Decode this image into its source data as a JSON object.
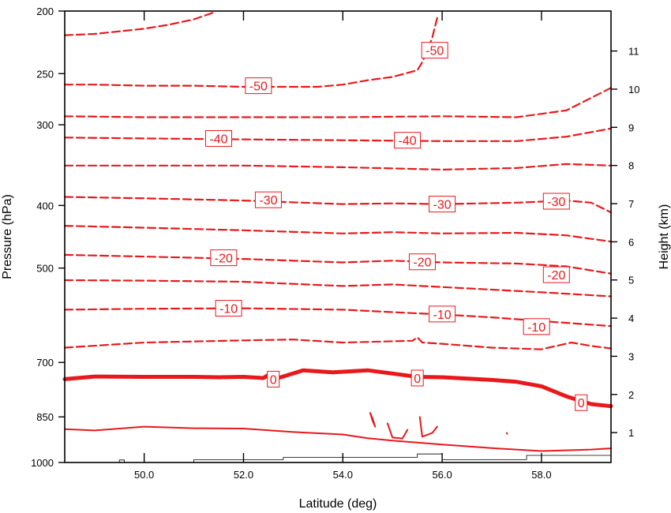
{
  "chart_data": {
    "type": "contour",
    "xlabel": "Latitude (deg)",
    "ylabel": "Pressure (hPa)",
    "y2label": "Height (km)",
    "xlim": [
      48.4,
      59.4
    ],
    "x_ticks": [
      {
        "value": 50,
        "label": "50.0"
      },
      {
        "value": 52,
        "label": "52.0"
      },
      {
        "value": 54,
        "label": "54.0"
      },
      {
        "value": 56,
        "label": "56.0"
      },
      {
        "value": 58,
        "label": "58.0"
      }
    ],
    "y_scale": "log-pressure",
    "ylim": [
      1000,
      200
    ],
    "y_ticks": [
      {
        "value": 1000,
        "label": "1000"
      },
      {
        "value": 850,
        "label": "850"
      },
      {
        "value": 700,
        "label": "700"
      },
      {
        "value": 500,
        "label": "500"
      },
      {
        "value": 400,
        "label": "400"
      },
      {
        "value": 300,
        "label": "300"
      },
      {
        "value": 250,
        "label": "250"
      },
      {
        "value": 200,
        "label": "200"
      }
    ],
    "y2_ticks": [
      {
        "value": 1,
        "label": "1"
      },
      {
        "value": 2,
        "label": "2"
      },
      {
        "value": 3,
        "label": "3"
      },
      {
        "value": 4,
        "label": "4"
      },
      {
        "value": 5,
        "label": "5"
      },
      {
        "value": 6,
        "label": "6"
      },
      {
        "value": 7,
        "label": "7"
      },
      {
        "value": 8,
        "label": "8"
      },
      {
        "value": 9,
        "label": "9"
      },
      {
        "value": 10,
        "label": "10"
      },
      {
        "value": 11,
        "label": "11"
      }
    ],
    "contour_color": "#e8191c",
    "contours": [
      {
        "level": -55,
        "style": "dashed",
        "points": [
          [
            48.4,
            218
          ],
          [
            49,
            217
          ],
          [
            49.5,
            215
          ],
          [
            50,
            213
          ],
          [
            50.5,
            210
          ],
          [
            51,
            206
          ],
          [
            51.4,
            201
          ]
        ]
      },
      {
        "level": -50,
        "style": "dashed",
        "points": [
          [
            48.4,
            260
          ],
          [
            49,
            260
          ],
          [
            50,
            261
          ],
          [
            51,
            261
          ],
          [
            52,
            262
          ],
          [
            53,
            262
          ],
          [
            53.5,
            262
          ],
          [
            54,
            260
          ],
          [
            54.5,
            256
          ],
          [
            55,
            253
          ],
          [
            55.5,
            247
          ],
          [
            55.6,
            240
          ],
          [
            55.7,
            230
          ],
          [
            55.8,
            220
          ],
          [
            55.9,
            205
          ]
        ]
      },
      {
        "level": -45,
        "style": "dashed",
        "points": [
          [
            48.4,
            291
          ],
          [
            50,
            292
          ],
          [
            52,
            292
          ],
          [
            54,
            292
          ],
          [
            56,
            291
          ],
          [
            57.5,
            292
          ],
          [
            58.5,
            285
          ],
          [
            59.4,
            263
          ]
        ]
      },
      {
        "level": -40,
        "style": "dashed",
        "points": [
          [
            48.4,
            314
          ],
          [
            50,
            315
          ],
          [
            52,
            316
          ],
          [
            54,
            317
          ],
          [
            56,
            318
          ],
          [
            57.5,
            318
          ],
          [
            58.5,
            313
          ],
          [
            59.4,
            304
          ]
        ]
      },
      {
        "level": -35,
        "style": "dashed",
        "points": [
          [
            48.4,
            347
          ],
          [
            50,
            347
          ],
          [
            52,
            347
          ],
          [
            54,
            349
          ],
          [
            56,
            352
          ],
          [
            57.5,
            350
          ],
          [
            58.5,
            345
          ],
          [
            59.4,
            347
          ]
        ]
      },
      {
        "level": -30,
        "style": "dashed",
        "points": [
          [
            48.4,
            388
          ],
          [
            50,
            390
          ],
          [
            52,
            393
          ],
          [
            54,
            398
          ],
          [
            55,
            397
          ],
          [
            56,
            398
          ],
          [
            57.5,
            396
          ],
          [
            58.5,
            393
          ],
          [
            59,
            396
          ],
          [
            59.4,
            410
          ]
        ]
      },
      {
        "level": -25,
        "style": "dashed",
        "points": [
          [
            48.4,
            430
          ],
          [
            50,
            433
          ],
          [
            52,
            437
          ],
          [
            54,
            442
          ],
          [
            55,
            440
          ],
          [
            56,
            442
          ],
          [
            57.5,
            441
          ],
          [
            58.5,
            445
          ],
          [
            59.4,
            455
          ]
        ]
      },
      {
        "level": -20,
        "style": "dashed",
        "points": [
          [
            48.4,
            477
          ],
          [
            50,
            480
          ],
          [
            52,
            484
          ],
          [
            54,
            490
          ],
          [
            55,
            487
          ],
          [
            56,
            490
          ],
          [
            57.5,
            492
          ],
          [
            58.5,
            497
          ],
          [
            59.4,
            510
          ]
        ]
      },
      {
        "level": -15,
        "style": "dashed",
        "points": [
          [
            48.4,
            522
          ],
          [
            50,
            523
          ],
          [
            52,
            525
          ],
          [
            54,
            533
          ],
          [
            55,
            530
          ],
          [
            56,
            535
          ],
          [
            57,
            540
          ],
          [
            58,
            545
          ],
          [
            59.4,
            553
          ]
        ]
      },
      {
        "level": -10,
        "style": "dashed",
        "points": [
          [
            48.4,
            580
          ],
          [
            50,
            578
          ],
          [
            52,
            577
          ],
          [
            54,
            580
          ],
          [
            55,
            585
          ],
          [
            56,
            590
          ],
          [
            57,
            596
          ],
          [
            58,
            604
          ],
          [
            59.4,
            615
          ]
        ]
      },
      {
        "level": -5,
        "style": "dashed",
        "points": [
          [
            48.4,
            664
          ],
          [
            50,
            652
          ],
          [
            52,
            647
          ],
          [
            53,
            645
          ],
          [
            54,
            652
          ],
          [
            55.4,
            648
          ],
          [
            55.5,
            640
          ],
          [
            55.6,
            652
          ],
          [
            56,
            655
          ],
          [
            57,
            664
          ],
          [
            58,
            668
          ],
          [
            58.6,
            652
          ],
          [
            59,
            660
          ],
          [
            59.4,
            666
          ]
        ]
      },
      {
        "level": 0,
        "style": "thick",
        "points": [
          [
            48.4,
            743
          ],
          [
            49,
            736
          ],
          [
            50,
            737
          ],
          [
            51,
            737
          ],
          [
            51.5,
            738
          ],
          [
            52,
            737
          ],
          [
            52.4,
            740
          ],
          [
            52.5,
            732
          ],
          [
            52.7,
            740
          ],
          [
            53.2,
            720
          ],
          [
            53.8,
            725
          ],
          [
            54.5,
            720
          ],
          [
            55.5,
            737
          ],
          [
            56,
            738
          ],
          [
            57,
            745
          ],
          [
            57.5,
            750
          ],
          [
            58,
            762
          ],
          [
            58.5,
            790
          ],
          [
            59,
            812
          ],
          [
            59.4,
            818
          ]
        ]
      },
      {
        "level": 5,
        "style": "solid",
        "points": [
          [
            48.4,
            888
          ],
          [
            49,
            892
          ],
          [
            50,
            880
          ],
          [
            51,
            885
          ],
          [
            52,
            886
          ],
          [
            53,
            897
          ],
          [
            54,
            905
          ],
          [
            54.5,
            917
          ],
          [
            55,
            925
          ],
          [
            56,
            938
          ],
          [
            57,
            950
          ],
          [
            58,
            960
          ],
          [
            59,
            955
          ],
          [
            59.4,
            951
          ]
        ]
      },
      {
        "level": 5,
        "style": "solid",
        "points": [
          [
            54.55,
            838
          ],
          [
            54.6,
            862
          ],
          [
            54.65,
            880
          ],
          [
            54.6,
            855
          ],
          [
            54.55,
            838
          ]
        ]
      },
      {
        "level": 5,
        "style": "solid",
        "points": [
          [
            54.9,
            870
          ],
          [
            55,
            915
          ],
          [
            55.2,
            918
          ],
          [
            55.3,
            890
          ]
        ]
      },
      {
        "level": 5,
        "style": "solid",
        "points": [
          [
            55.55,
            850
          ],
          [
            55.6,
            912
          ],
          [
            55.8,
            900
          ],
          [
            55.9,
            880
          ]
        ]
      },
      {
        "level": 5,
        "style": "solid",
        "points": [
          [
            57.3,
            900
          ],
          [
            57.31,
            903
          ]
        ]
      }
    ],
    "contour_labels": [
      {
        "value": "-50",
        "x": 55.85,
        "p": 230
      },
      {
        "value": "-50",
        "x": 52.3,
        "p": 261
      },
      {
        "value": "-40",
        "x": 51.5,
        "p": 315
      },
      {
        "value": "-40",
        "x": 55.3,
        "p": 317
      },
      {
        "value": "-30",
        "x": 52.5,
        "p": 392
      },
      {
        "value": "-30",
        "x": 56,
        "p": 398
      },
      {
        "value": "-30",
        "x": 58.3,
        "p": 394
      },
      {
        "value": "-20",
        "x": 51.6,
        "p": 482
      },
      {
        "value": "-20",
        "x": 55.6,
        "p": 489
      },
      {
        "value": "-20",
        "x": 58.3,
        "p": 512
      },
      {
        "value": "-10",
        "x": 51.7,
        "p": 577
      },
      {
        "value": "-10",
        "x": 56,
        "p": 589
      },
      {
        "value": "-10",
        "x": 57.9,
        "p": 616
      },
      {
        "value": "0",
        "x": 52.6,
        "p": 743
      },
      {
        "value": "0",
        "x": 55.5,
        "p": 740
      },
      {
        "value": "0",
        "x": 58.8,
        "p": 808
      }
    ],
    "terrain": {
      "points": [
        [
          48.4,
          1000
        ],
        [
          49.5,
          1000
        ],
        [
          49.5,
          991
        ],
        [
          49.6,
          991
        ],
        [
          49.6,
          1000
        ],
        [
          51,
          1000
        ],
        [
          51,
          990
        ],
        [
          52.8,
          990
        ],
        [
          52.8,
          982
        ],
        [
          55.5,
          982
        ],
        [
          55.5,
          970
        ],
        [
          56,
          970
        ],
        [
          56,
          990
        ],
        [
          57.7,
          990
        ],
        [
          57.7,
          975
        ],
        [
          59.4,
          975
        ]
      ]
    }
  }
}
